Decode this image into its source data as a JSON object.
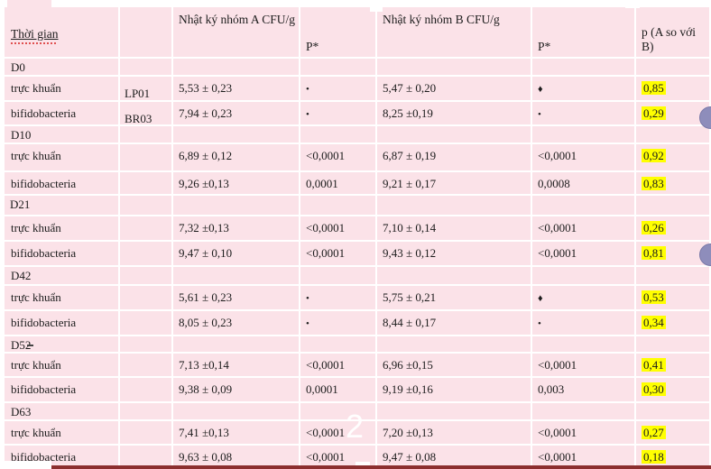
{
  "page": {
    "watermark": "2"
  },
  "colors": {
    "cell_pink": "#fbe2e8",
    "grid_white": "#ffffff",
    "highlight_yellow": "#ffff00",
    "bottom_bar_maroon": "#8c2f2f",
    "balloon_purple": "#8e8dbb"
  },
  "table": {
    "header": {
      "time": "Thời gian",
      "strain": "",
      "group_a": "Nhật ký nhóm A CFU/g",
      "p_star_a": "P*",
      "group_b": "Nhật ký nhóm B CFU/g",
      "p_star_b": "P*",
      "p_ab": "p (A so với B)"
    },
    "rows": [
      {
        "type": "section",
        "label": "D0",
        "strain": "",
        "a": "",
        "pa": "",
        "b": "",
        "pb": "",
        "p": ""
      },
      {
        "type": "data",
        "label": "trực khuẩn",
        "strain": "LP01",
        "a": "5,53 ± 0,23",
        "pa": "•",
        "b": "5,47 ± 0,20",
        "pb": "♦",
        "p": "0,85"
      },
      {
        "type": "data",
        "label": "bifidobacteria",
        "strain": "BR03",
        "a": "7,94 ± 0,23",
        "pa": "•",
        "b": "8,25 ±0,19",
        "pb": "•",
        "p": "0,29"
      },
      {
        "type": "section",
        "label": "D10",
        "strain": "",
        "a": "",
        "pa": "",
        "b": "",
        "pb": "",
        "p": ""
      },
      {
        "type": "data",
        "label": "trực khuẩn",
        "strain": "",
        "a": "6,89 ± 0,12",
        "pa": "<0,0001",
        "b": "6,87 ± 0,19",
        "pb": "<0,0001",
        "p": "0,92"
      },
      {
        "type": "data",
        "label": "bifidobacteria",
        "strain": "",
        "a": "9,26 ±0,13",
        "pa": "0,0001",
        "b": "9,21 ± 0,17",
        "pb": "0,0008",
        "p": "0,83"
      },
      {
        "type": "section",
        "label": "D21",
        "indent": true,
        "strain": "",
        "a": "",
        "pa": "",
        "b": "",
        "pb": "",
        "p": ""
      },
      {
        "type": "data",
        "label": "trực khuẩn",
        "strain": "",
        "a": "7,32 ±0,13",
        "pa": "<0,0001",
        "b": "7,10 ± 0,14",
        "pb": "<0,0001",
        "p": "0,26"
      },
      {
        "type": "data",
        "label": "bifidobacteria",
        "strain": "",
        "a": "9,47 ± 0,10",
        "pa": "<0,0001",
        "b": "9,43 ± 0,12",
        "pb": "<0,0001",
        "p": "0,81"
      },
      {
        "type": "section",
        "label": "D42",
        "strain": "",
        "a": "",
        "pa": "",
        "b": "",
        "pb": "",
        "p": ""
      },
      {
        "type": "data",
        "label": "trực khuẩn",
        "strain": "",
        "a": "5,61 ± 0,23",
        "pa": "•",
        "b": "5,75 ± 0,21",
        "pb": "♦",
        "p": "0,53"
      },
      {
        "type": "data",
        "label": "bifidobacteria",
        "strain": "",
        "a": "8,05 ± 0,23",
        "pa": "•",
        "b": "8,44 ± 0,17",
        "pb": "•",
        "p": "0,34"
      },
      {
        "type": "section",
        "label": "D52",
        "strain": "",
        "a": "",
        "pa": "",
        "b": "",
        "pb": "",
        "p": ""
      },
      {
        "type": "data",
        "label": "trực khuẩn",
        "strain": "",
        "a": "7,13 ±0,14",
        "pa": "<0,0001",
        "b": "6,96 ±0,15",
        "pb": "<0,0001",
        "p": "0,41"
      },
      {
        "type": "data",
        "label": "bifidobacteria",
        "strain": "",
        "a": "9,38 ± 0,09",
        "pa": "0,0001",
        "b": "9,19 ±0,16",
        "pb": "0,003",
        "p": "0,30"
      },
      {
        "type": "section",
        "label": "D63",
        "strain": "",
        "a": "",
        "pa": "",
        "b": "",
        "pb": "",
        "p": ""
      },
      {
        "type": "data",
        "label": "trực khuẩn",
        "strain": "",
        "a": "7,41 ±0,13",
        "pa": "<0,0001",
        "b": "7,20 ±0,13",
        "pb": "<0,0001",
        "p": "0,27"
      },
      {
        "type": "data",
        "label": "bifidobacteria",
        "strain": "",
        "a": "9,63 ± 0,08",
        "pa": "<0,0001",
        "b": "9,47 ± 0,08",
        "pb": "<0,0001",
        "p": "0,18"
      }
    ]
  }
}
